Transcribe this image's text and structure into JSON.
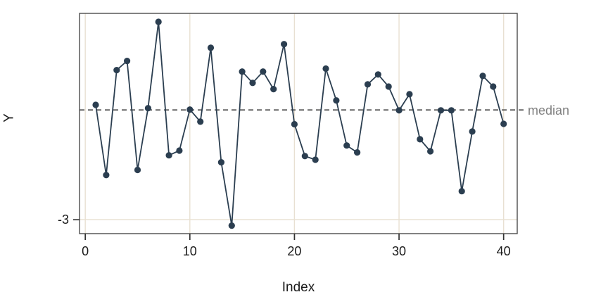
{
  "chart_data": {
    "type": "line",
    "title": "",
    "xlabel": "Index",
    "ylabel": "Y",
    "x": [
      1,
      2,
      3,
      4,
      5,
      6,
      7,
      8,
      9,
      10,
      11,
      12,
      13,
      14,
      15,
      16,
      17,
      18,
      19,
      20,
      21,
      22,
      23,
      24,
      25,
      26,
      27,
      28,
      29,
      30,
      31,
      32,
      33,
      34,
      35,
      36,
      37,
      38,
      39,
      40
    ],
    "y": [
      0.14,
      -1.78,
      1.09,
      1.34,
      -1.64,
      0.05,
      2.41,
      -1.24,
      -1.11,
      0.01,
      -0.32,
      1.7,
      -1.43,
      -3.16,
      1.05,
      0.74,
      1.05,
      0.57,
      1.8,
      -0.39,
      -1.26,
      -1.36,
      1.13,
      0.26,
      -0.97,
      -1.16,
      0.7,
      0.97,
      0.64,
      -0.01,
      0.43,
      -0.8,
      -1.13,
      -0.01,
      -0.01,
      -2.22,
      -0.59,
      0.93,
      0.64,
      -0.38
    ],
    "xlim": [
      -0.55,
      41.3
    ],
    "ylim": [
      -3.38,
      2.64
    ],
    "x_ticks": [
      0,
      10,
      20,
      30,
      40
    ],
    "x_tick_labels": [
      "0",
      "10",
      "20",
      "30",
      "40"
    ],
    "y_ticks": [
      -3
    ],
    "y_tick_labels": [
      "-3"
    ],
    "grid": true,
    "legend": "none",
    "marker": "circle",
    "reference_line": {
      "value": 0,
      "style": "dashed",
      "label": "median"
    },
    "colors": {
      "series": "#2b3e50",
      "grid": "#e8e0d2",
      "panel_border": "#4d4d4d",
      "reference_line": "#4d4d4d",
      "tick_mark": "#333333",
      "tick_label": "#1a1a1a",
      "axis_title": "#1a1a1a",
      "reference_label": "#808080",
      "background": "#ffffff"
    }
  }
}
